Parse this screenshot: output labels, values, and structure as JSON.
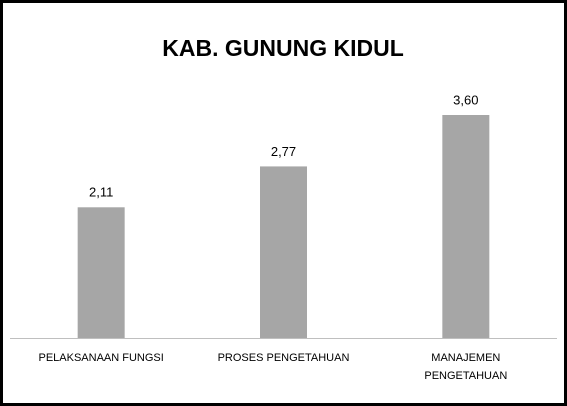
{
  "chart_data": {
    "type": "bar",
    "title": "KAB. GUNUNG KIDUL",
    "categories": [
      "PELAKSANAAN FUNGSI",
      "PROSES PENGETAHUAN",
      "MANAJEMEN PENGETAHUAN"
    ],
    "values": [
      2.11,
      2.77,
      3.6
    ],
    "value_labels": [
      "2,11",
      "2,77",
      "3,60"
    ],
    "color": "#a6a6a6"
  }
}
